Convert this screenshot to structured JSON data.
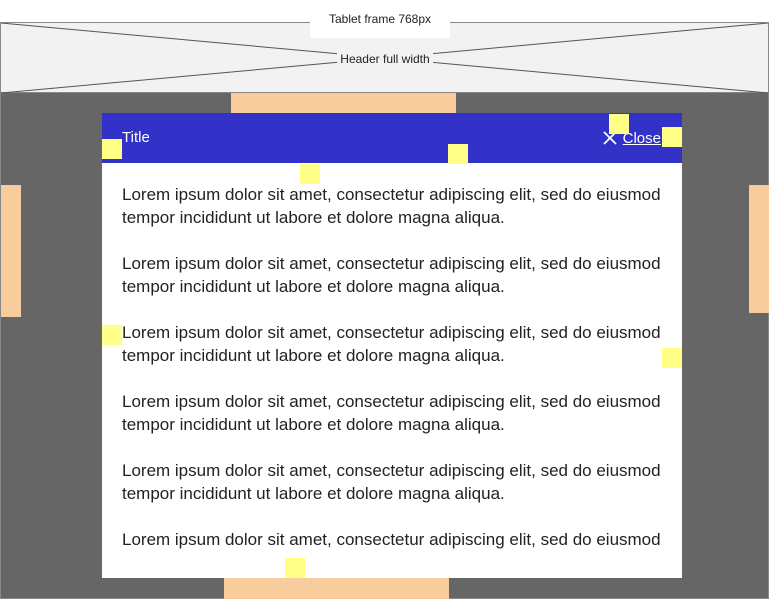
{
  "annotations": {
    "frame_label": "Tablet frame 768px",
    "header_label": "Header full width"
  },
  "modal": {
    "title": "Title",
    "close_label": "Close",
    "close_icon": "close-icon",
    "paragraphs": [
      "Lorem ipsum dolor sit amet, consectetur adipiscing elit, sed do eiusmod tempor incididunt ut labore et dolore magna aliqua.",
      "Lorem ipsum dolor sit amet, consectetur adipiscing elit, sed do eiusmod tempor incididunt ut labore et dolore magna aliqua.",
      "Lorem ipsum dolor sit amet, consectetur adipiscing elit, sed do eiusmod tempor incididunt ut labore et dolore magna aliqua.",
      "Lorem ipsum dolor sit amet, consectetur adipiscing elit, sed do eiusmod tempor incididunt ut labore et dolore magna aliqua.",
      "Lorem ipsum dolor sit amet, consectetur adipiscing elit, sed do eiusmod tempor incididunt ut labore et dolore magna aliqua.",
      "Lorem ipsum dolor sit amet, consectetur adipiscing elit, sed do eiusmod"
    ]
  },
  "colors": {
    "frame_background": "#666666",
    "header_background": "#f2f2f2",
    "modal_header": "#3232c8",
    "spacing_marker": "#f8cc9c",
    "highlight_marker": "#ffff88"
  }
}
